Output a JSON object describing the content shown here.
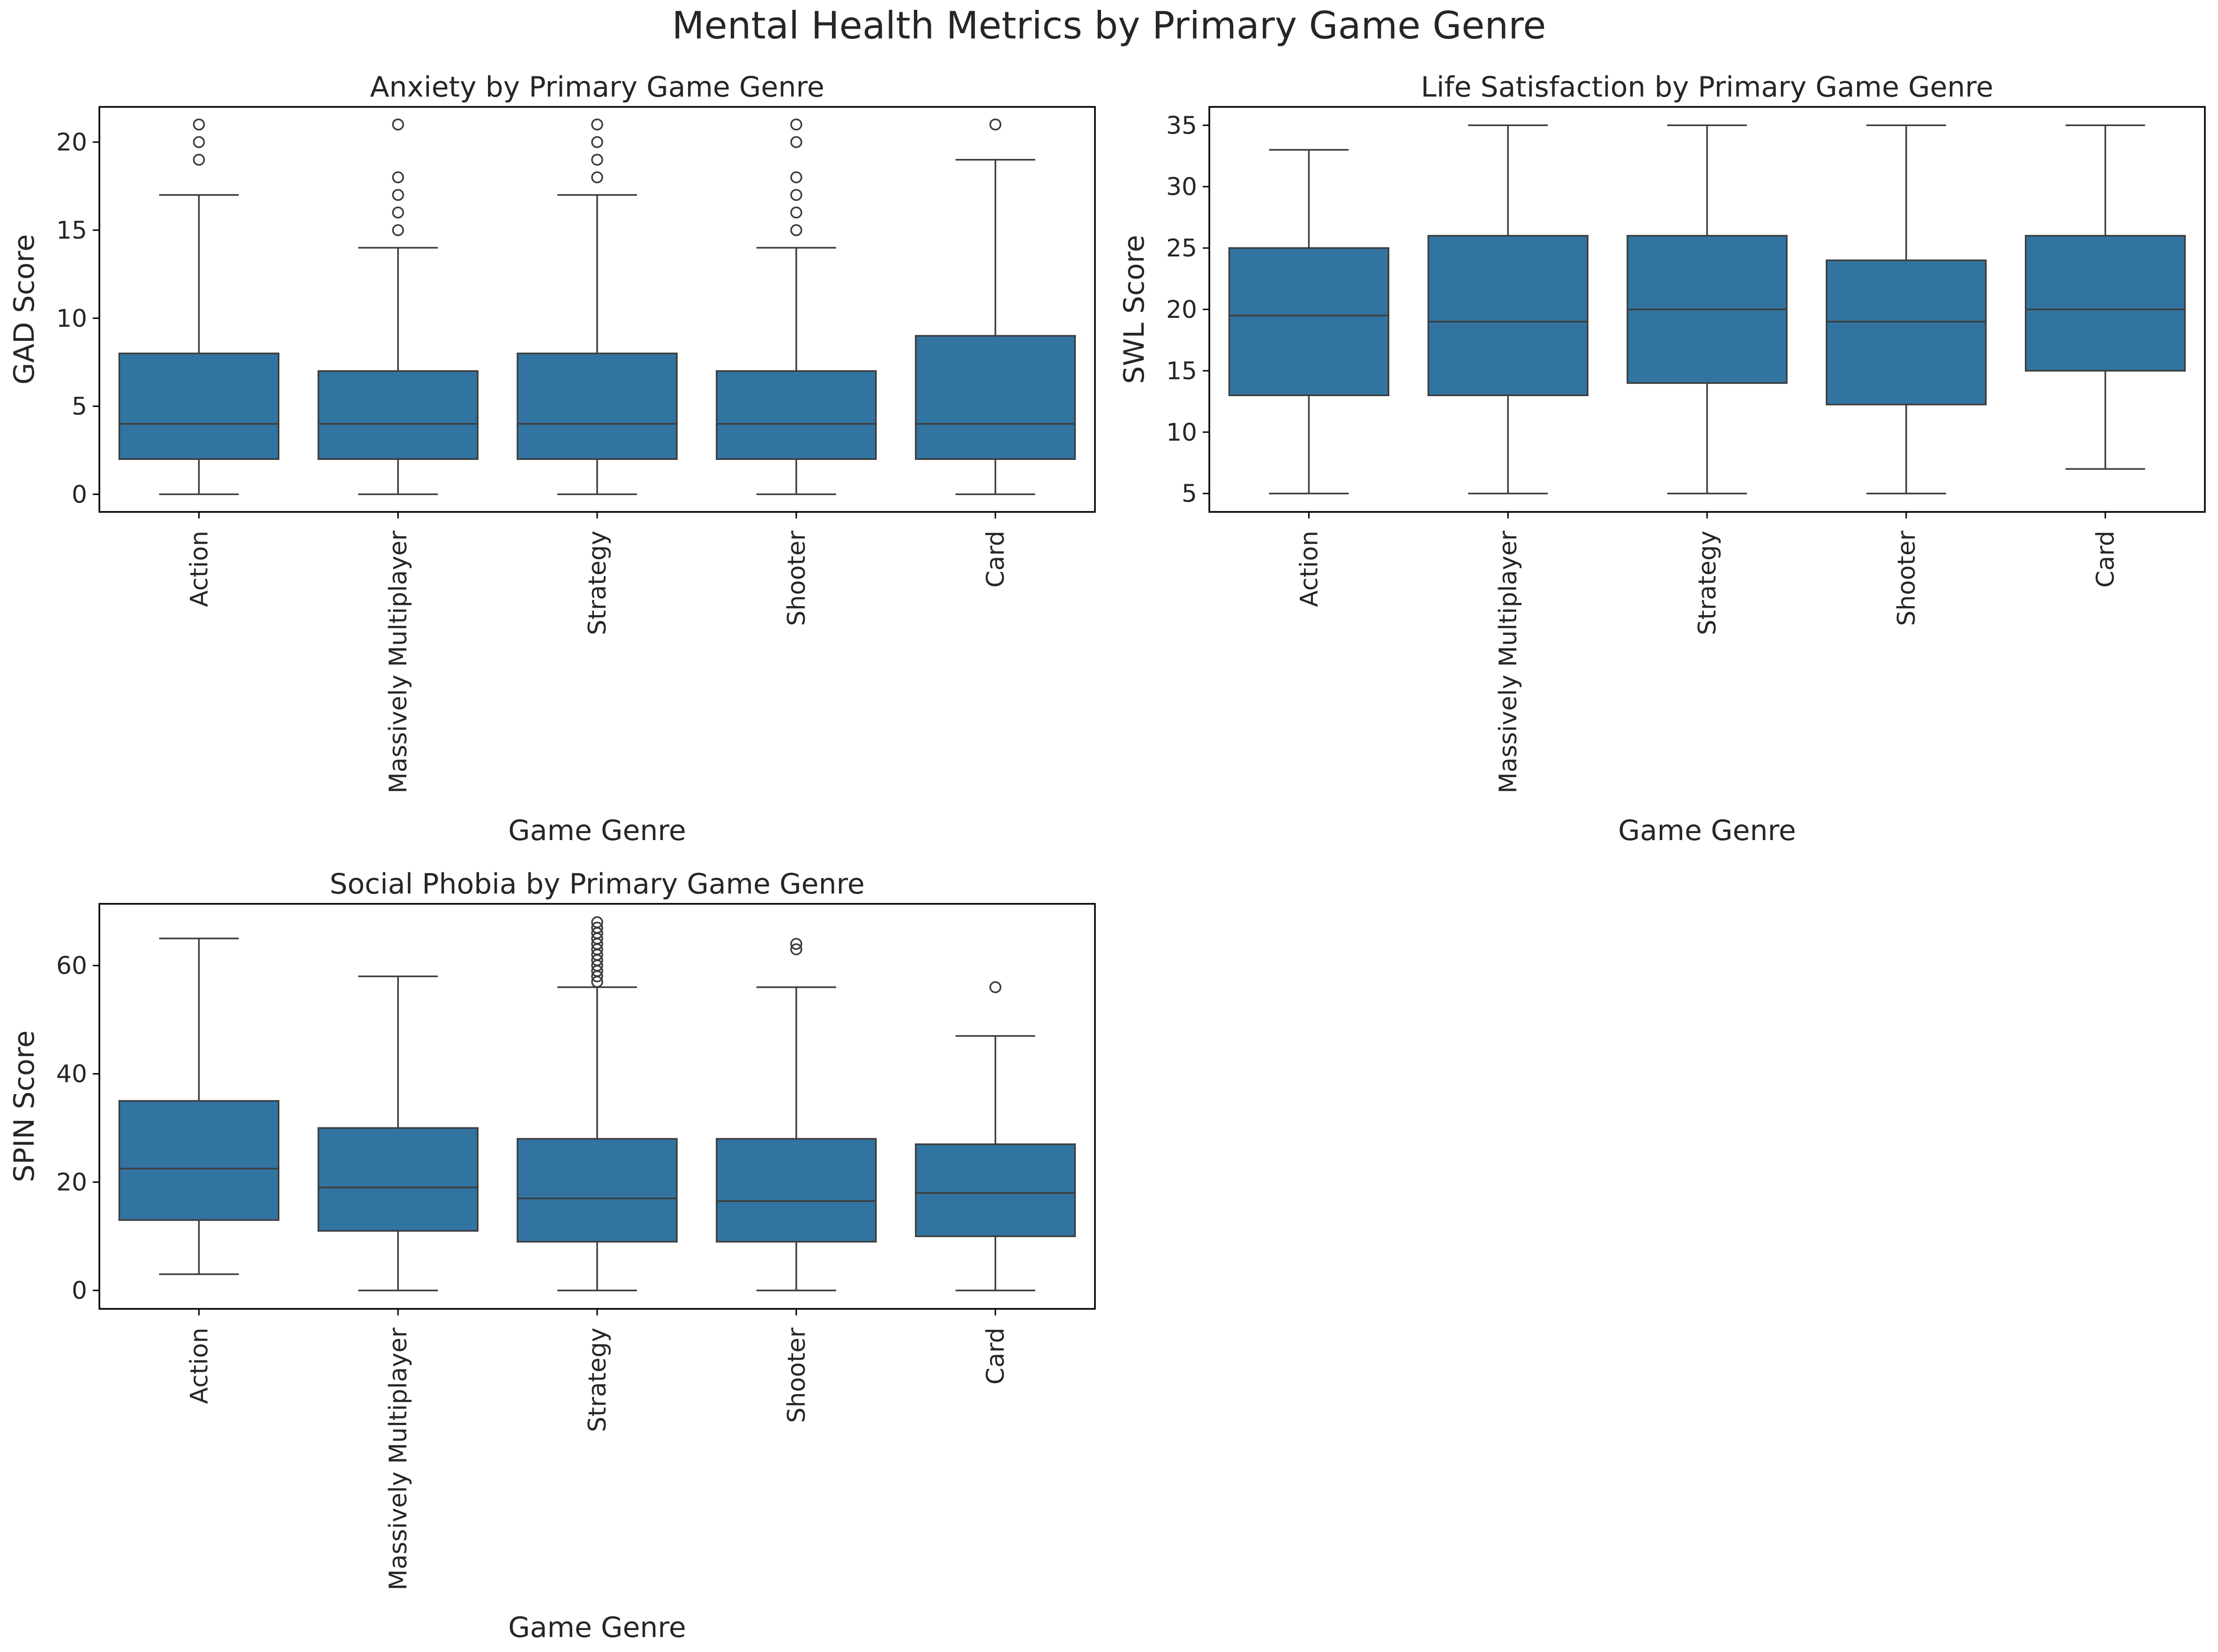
{
  "figure": {
    "suptitle": "Mental Health Metrics by Primary Game Genre"
  },
  "colors": {
    "box_fill": "#3274a1",
    "line": "#3d3d3d",
    "frame": "#000000"
  },
  "chart_data": [
    {
      "type": "box",
      "title": "Anxiety by Primary Game Genre",
      "xlabel": "Game Genre",
      "ylabel": "GAD Score",
      "ylim": [
        -1,
        22
      ],
      "yticks": [
        0,
        5,
        10,
        15,
        20
      ],
      "grid": false,
      "categories": [
        "Action",
        "Massively Multiplayer",
        "Strategy",
        "Shooter",
        "Card"
      ],
      "boxes": [
        {
          "q1": 2,
          "median": 4,
          "q3": 8,
          "whisker_low": 0,
          "whisker_high": 17,
          "outliers": [
            19,
            20,
            21
          ]
        },
        {
          "q1": 2,
          "median": 4,
          "q3": 7,
          "whisker_low": 0,
          "whisker_high": 14,
          "outliers": [
            15,
            16,
            17,
            18,
            21
          ]
        },
        {
          "q1": 2,
          "median": 4,
          "q3": 8,
          "whisker_low": 0,
          "whisker_high": 17,
          "outliers": [
            18,
            19,
            20,
            21
          ]
        },
        {
          "q1": 2,
          "median": 4,
          "q3": 7,
          "whisker_low": 0,
          "whisker_high": 14,
          "outliers": [
            15,
            16,
            17,
            18,
            20,
            21
          ]
        },
        {
          "q1": 2,
          "median": 4,
          "q3": 9,
          "whisker_low": 0,
          "whisker_high": 19,
          "outliers": [
            21
          ]
        }
      ]
    },
    {
      "type": "box",
      "title": "Life Satisfaction by Primary Game Genre",
      "xlabel": "Game Genre",
      "ylabel": "SWL Score",
      "ylim": [
        3.5,
        36.5
      ],
      "yticks": [
        5,
        10,
        15,
        20,
        25,
        30,
        35
      ],
      "grid": false,
      "categories": [
        "Action",
        "Massively Multiplayer",
        "Strategy",
        "Shooter",
        "Card"
      ],
      "boxes": [
        {
          "q1": 13,
          "median": 19.5,
          "q3": 25,
          "whisker_low": 5,
          "whisker_high": 33,
          "outliers": []
        },
        {
          "q1": 13,
          "median": 19,
          "q3": 26,
          "whisker_low": 5,
          "whisker_high": 35,
          "outliers": []
        },
        {
          "q1": 14,
          "median": 20,
          "q3": 26,
          "whisker_low": 5,
          "whisker_high": 35,
          "outliers": []
        },
        {
          "q1": 12.25,
          "median": 19,
          "q3": 24,
          "whisker_low": 5,
          "whisker_high": 35,
          "outliers": []
        },
        {
          "q1": 15,
          "median": 20,
          "q3": 26,
          "whisker_low": 7,
          "whisker_high": 35,
          "outliers": []
        }
      ]
    },
    {
      "type": "box",
      "title": "Social Phobia by Primary Game Genre",
      "xlabel": "Game Genre",
      "ylabel": "SPIN Score",
      "ylim": [
        -3.4,
        71.4
      ],
      "yticks": [
        0,
        20,
        40,
        60
      ],
      "grid": false,
      "categories": [
        "Action",
        "Massively Multiplayer",
        "Strategy",
        "Shooter",
        "Card"
      ],
      "boxes": [
        {
          "q1": 13,
          "median": 22.5,
          "q3": 35,
          "whisker_low": 3,
          "whisker_high": 65,
          "outliers": []
        },
        {
          "q1": 11,
          "median": 19,
          "q3": 30,
          "whisker_low": 0,
          "whisker_high": 58,
          "outliers": []
        },
        {
          "q1": 9,
          "median": 17,
          "q3": 28,
          "whisker_low": 0,
          "whisker_high": 56,
          "outliers": [
            57,
            58,
            59,
            60,
            61,
            62,
            63,
            64,
            65,
            66,
            67,
            68
          ]
        },
        {
          "q1": 9,
          "median": 16.5,
          "q3": 28,
          "whisker_low": 0,
          "whisker_high": 56,
          "outliers": [
            63,
            64
          ]
        },
        {
          "q1": 10,
          "median": 18,
          "q3": 27,
          "whisker_low": 0,
          "whisker_high": 47,
          "outliers": [
            56
          ]
        }
      ]
    }
  ]
}
